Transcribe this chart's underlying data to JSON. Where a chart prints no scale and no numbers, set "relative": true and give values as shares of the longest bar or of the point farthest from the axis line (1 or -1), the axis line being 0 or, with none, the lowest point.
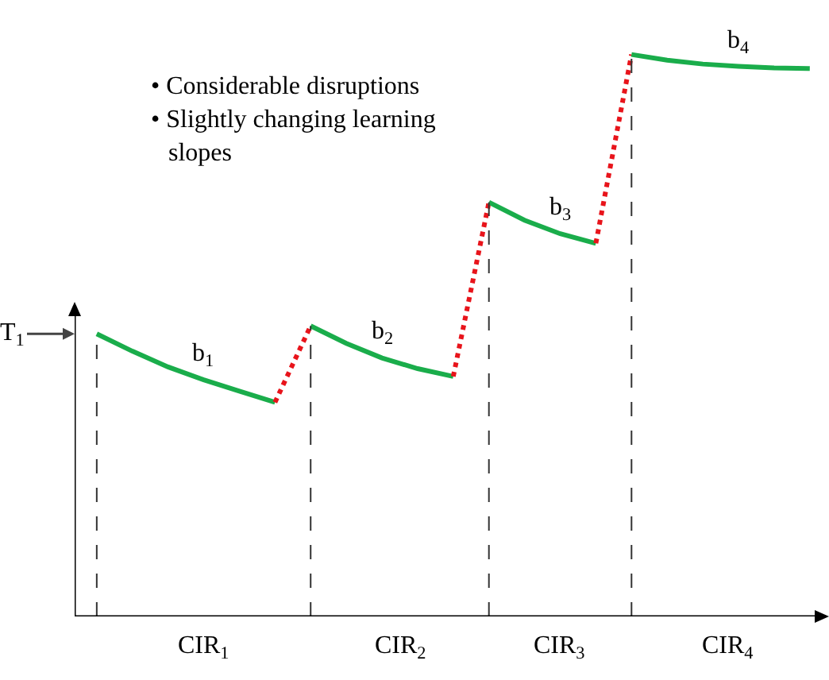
{
  "chart_data": {
    "type": "line",
    "relative": true,
    "grid": false,
    "marker": "none",
    "categories": [
      null,
      null,
      null,
      null,
      null,
      null,
      null,
      null,
      null,
      null,
      null,
      null,
      null,
      null,
      null,
      null,
      null,
      null,
      null,
      null,
      null
    ],
    "series": [
      {
        "color": "#1aad4b",
        "line_style": "solid",
        "values": [
          0.503,
          0.472,
          0.444,
          0.421,
          0.401,
          0.381,
          null,
          null,
          null,
          null,
          null,
          null,
          null,
          null,
          null,
          null,
          null,
          null,
          null,
          null,
          null
        ]
      },
      {
        "color": "#e8141b",
        "line_style": "dotted",
        "values": [
          null,
          null,
          null,
          null,
          null,
          0.381,
          0.517,
          null,
          null,
          null,
          null,
          null,
          null,
          null,
          null,
          null,
          null,
          null,
          null,
          null,
          null
        ]
      },
      {
        "color": "#1aad4b",
        "line_style": "solid",
        "values": [
          null,
          null,
          null,
          null,
          null,
          null,
          0.517,
          0.486,
          0.46,
          0.441,
          0.427,
          null,
          null,
          null,
          null,
          null,
          null,
          null,
          null,
          null,
          null
        ]
      },
      {
        "color": "#e8141b",
        "line_style": "dotted",
        "values": [
          null,
          null,
          null,
          null,
          null,
          null,
          null,
          null,
          null,
          null,
          0.427,
          0.737,
          null,
          null,
          null,
          null,
          null,
          null,
          null,
          null,
          null
        ]
      },
      {
        "color": "#1aad4b",
        "line_style": "solid",
        "values": [
          null,
          null,
          null,
          null,
          null,
          null,
          null,
          null,
          null,
          null,
          null,
          0.737,
          0.705,
          0.681,
          0.664,
          null,
          null,
          null,
          null,
          null,
          null
        ]
      },
      {
        "color": "#e8141b",
        "line_style": "dotted",
        "values": [
          null,
          null,
          null,
          null,
          null,
          null,
          null,
          null,
          null,
          null,
          null,
          null,
          null,
          null,
          0.664,
          1.0,
          null,
          null,
          null,
          null,
          null
        ]
      },
      {
        "color": "#1aad4b",
        "line_style": "solid",
        "values": [
          null,
          null,
          null,
          null,
          null,
          null,
          null,
          null,
          null,
          null,
          null,
          null,
          null,
          null,
          null,
          1.0,
          0.99,
          0.983,
          0.979,
          0.976,
          0.975
        ]
      }
    ],
    "annotations": [
      "• Considerable disruptions",
      "• Slightly changing learning slopes",
      "T$_{1}$",
      "b$_{1}$",
      "b$_{2}$",
      "b$_{3}$",
      "b$_{4}$",
      "CIR$_{1}$",
      "CIR$_{2}$",
      "CIR$_{3}$",
      "CIR$_{4}$"
    ]
  }
}
